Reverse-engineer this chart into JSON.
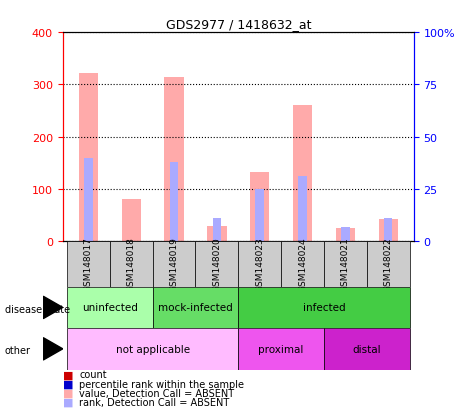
{
  "title": "GDS2977 / 1418632_at",
  "samples": [
    "GSM148017",
    "GSM148018",
    "GSM148019",
    "GSM148020",
    "GSM148023",
    "GSM148024",
    "GSM148021",
    "GSM148022"
  ],
  "value_absent": [
    322,
    80,
    315,
    30,
    132,
    260,
    25,
    42
  ],
  "rank_absent_pct": [
    40,
    0,
    38,
    11,
    25,
    31,
    7,
    11
  ],
  "ylim_left": [
    0,
    400
  ],
  "ylim_right": [
    0,
    100
  ],
  "yticks_left": [
    0,
    100,
    200,
    300,
    400
  ],
  "yticks_right": [
    0,
    25,
    50,
    75,
    100
  ],
  "disease_state_groups": [
    {
      "label": "uninfected",
      "start": 0,
      "end": 2,
      "color": "#aaffaa"
    },
    {
      "label": "mock-infected",
      "start": 2,
      "end": 4,
      "color": "#66dd66"
    },
    {
      "label": "infected",
      "start": 4,
      "end": 8,
      "color": "#44cc44"
    }
  ],
  "other_groups": [
    {
      "label": "not applicable",
      "start": 0,
      "end": 4,
      "color": "#ffbbff"
    },
    {
      "label": "proximal",
      "start": 4,
      "end": 6,
      "color": "#ee55ee"
    },
    {
      "label": "distal",
      "start": 6,
      "end": 8,
      "color": "#cc22cc"
    }
  ],
  "color_value_absent": "#ffaaaa",
  "color_rank_absent": "#aaaaff",
  "color_count_present": "#cc0000",
  "color_rank_present": "#0000cc",
  "legend_items": [
    {
      "label": "count",
      "color": "#cc0000"
    },
    {
      "label": "percentile rank within the sample",
      "color": "#0000cc"
    },
    {
      "label": "value, Detection Call = ABSENT",
      "color": "#ffaaaa"
    },
    {
      "label": "rank, Detection Call = ABSENT",
      "color": "#aaaaff"
    }
  ]
}
